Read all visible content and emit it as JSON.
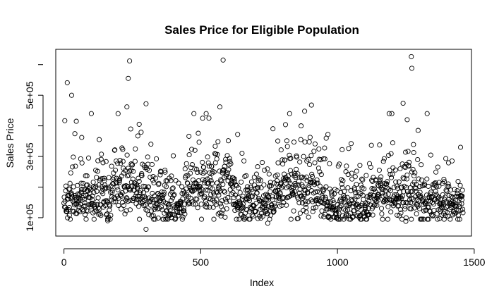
{
  "chart_data": {
    "type": "scatter",
    "title": "Sales Price for Eligible Population",
    "xlabel": "Index",
    "ylabel": "Sales Price",
    "xlim": [
      -30,
      1490
    ],
    "ylim": [
      40000,
      650000
    ],
    "x_ticks": [
      0,
      500,
      1000,
      1500
    ],
    "x_tick_labels": [
      "0",
      "500",
      "1000",
      "1500"
    ],
    "y_ticks": [
      100000,
      300000,
      500000
    ],
    "y_tick_labels": [
      "1e+05",
      "3e+05",
      "5e+05"
    ],
    "grid": false,
    "legend": "none",
    "n_points": 1460,
    "seed": 1460,
    "baseline_segments": [
      {
        "x": [
          0,
          180
        ],
        "median": 165000
      },
      {
        "x": [
          180,
          320
        ],
        "median": 200000
      },
      {
        "x": [
          320,
          440
        ],
        "median": 145000
      },
      {
        "x": [
          440,
          620
        ],
        "median": 205000
      },
      {
        "x": [
          620,
          780
        ],
        "median": 150000
      },
      {
        "x": [
          780,
          960
        ],
        "median": 200000
      },
      {
        "x": [
          960,
          1120
        ],
        "median": 140000
      },
      {
        "x": [
          1120,
          1300
        ],
        "median": 180000
      },
      {
        "x": [
          1300,
          1460
        ],
        "median": 150000
      }
    ],
    "notable_points": [
      {
        "x": 12,
        "y": 541000
      },
      {
        "x": 28,
        "y": 500000
      },
      {
        "x": 45,
        "y": 415000
      },
      {
        "x": 65,
        "y": 362000
      },
      {
        "x": 235,
        "y": 555000
      },
      {
        "x": 240,
        "y": 612000
      },
      {
        "x": 230,
        "y": 462000
      },
      {
        "x": 300,
        "y": 472000
      },
      {
        "x": 275,
        "y": 405000
      },
      {
        "x": 582,
        "y": 615000
      },
      {
        "x": 570,
        "y": 462000
      },
      {
        "x": 530,
        "y": 425000
      },
      {
        "x": 635,
        "y": 372000
      },
      {
        "x": 905,
        "y": 468000
      },
      {
        "x": 880,
        "y": 448000
      },
      {
        "x": 965,
        "y": 372000
      },
      {
        "x": 1240,
        "y": 474000
      },
      {
        "x": 1255,
        "y": 420000
      },
      {
        "x": 1270,
        "y": 626000
      },
      {
        "x": 1272,
        "y": 588000
      },
      {
        "x": 1295,
        "y": 385000
      },
      {
        "x": 1450,
        "y": 330000
      },
      {
        "x": 300,
        "y": 62000
      },
      {
        "x": 745,
        "y": 82000
      },
      {
        "x": 1250,
        "y": 88000
      },
      {
        "x": 160,
        "y": 90000
      },
      {
        "x": 20,
        "y": 108000
      }
    ]
  }
}
